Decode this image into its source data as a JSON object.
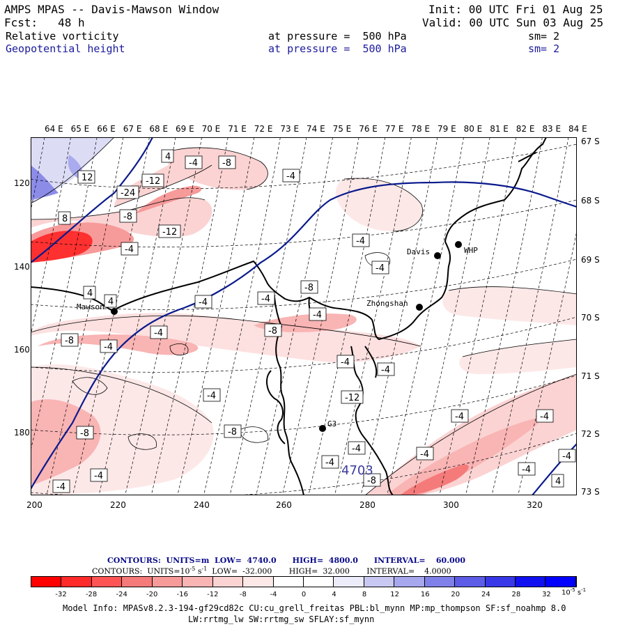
{
  "header": {
    "title": "AMPS MPAS -- Davis-Mawson Window",
    "init": "Init: 00 UTC Fri 01 Aug 25",
    "fcst": "Fcst:   48 h",
    "valid": "Valid: 00 UTC Sun 03 Aug 25",
    "field1": "Relative vorticity",
    "field1_pressure": "at pressure =  500 hPa",
    "field1_sm": "sm= 2",
    "field2": "Geopotential height",
    "field2_pressure": "at pressure =  500 hPa",
    "field2_sm": "sm= 2"
  },
  "map": {
    "lon_labels": [
      "64 E",
      "65 E",
      "66 E",
      "67 E",
      "68 E",
      "69 E",
      "70 E",
      "71 E",
      "72 E",
      "73 E",
      "74 E",
      "75 E",
      "76 E",
      "77 E",
      "78 E",
      "79 E",
      "80 E",
      "81 E",
      "82 E",
      "83 E",
      "84 E"
    ],
    "lat_labels": [
      "67 S",
      "68 S",
      "69 S",
      "70 S",
      "71 S",
      "72 S",
      "73 S"
    ],
    "y_ticks": [
      "120",
      "140",
      "160",
      "180"
    ],
    "x_ticks": [
      "200",
      "220",
      "240",
      "260",
      "280",
      "300",
      "320"
    ],
    "stations": {
      "davis": "Davis",
      "whp": "WHP",
      "mawson": "Mawson",
      "zhongshan": "Zhongshan",
      "g3": "G3"
    },
    "height_label": "4703",
    "contour_labels": [
      "4",
      "-4",
      "-8",
      "12",
      "-12",
      "-24",
      "8",
      "-4",
      "-8",
      "-12",
      "-4",
      "-4",
      "-4",
      "4",
      "4",
      "-4",
      "-8",
      "-4",
      "-4",
      "-8",
      "-4",
      "-8",
      "-4",
      "-4",
      "-4",
      "-4",
      "-12",
      "-8",
      "-8",
      "-4",
      "-4",
      "-4",
      "-4",
      "-4",
      "-4",
      "-4",
      "4",
      "-8",
      "-4",
      "-4"
    ],
    "colors": {
      "vort_neg_strong": "#ff0000",
      "vort_neg_mid": "#f57a7a",
      "vort_neg_weak": "#fbd3d3",
      "vort_pos_weak": "#dcdcf5",
      "vort_pos_mid": "#8c8ce8",
      "height_contour": "#0a1a8c",
      "coast": "#000000"
    }
  },
  "footer": {
    "contours_height": "CONTOURS:  UNITS=m  LOW=  4740.0      HIGH=  4800.0      INTERVAL=    60.000",
    "contours_vort_prefix": "CONTOURS:  UNITS=10",
    "contours_vort_exp": "-5",
    "contours_vort_unit": " s",
    "contours_vort_exp2": "-1",
    "contours_vort_rest": "  LOW=  -32.000       HIGH=  32.000       INTERVAL=    4.0000",
    "colorbar_labels": [
      "-32",
      "-28",
      "-24",
      "-20",
      "-16",
      "-12",
      "-8",
      "-4",
      "0",
      "4",
      "8",
      "12",
      "16",
      "20",
      "24",
      "28",
      "32"
    ],
    "colorbar_unit": "10",
    "colorbar_unit_exp": "-5",
    "colorbar_unit_s": "s",
    "colorbar_unit_s_exp": "-1",
    "colorbar_colors": [
      "#ff0000",
      "#ff2a2a",
      "#ff5555",
      "#f57a7a",
      "#f79a9a",
      "#f9b4b4",
      "#fbd3d3",
      "#fde8e8",
      "#ffffff",
      "#ffffff",
      "#ececfb",
      "#c8c8f2",
      "#a7a7ee",
      "#8080ea",
      "#5c5ce6",
      "#3838e8",
      "#1010f0",
      "#0000ff"
    ],
    "model_info_line1": "Model Info: MPASv8.2.3-194-gf29cd82c CU:cu_grell_freitas PBL:bl_mynn MP:mp_thompson SF:sf_noahmp 8.0",
    "model_info_line2": "LW:rrtmg_lw SW:rrtmg_sw SFLAY:sf_mynn"
  }
}
